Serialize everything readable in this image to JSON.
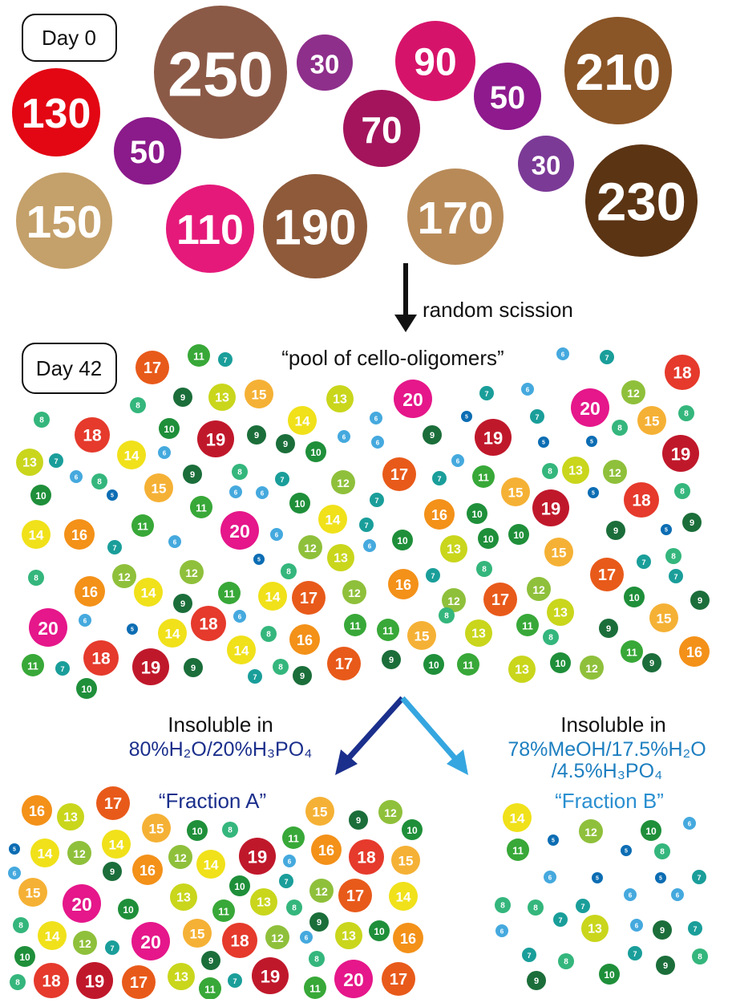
{
  "day0": {
    "label": "Day 0",
    "circles": [
      "130",
      "250",
      "30",
      "50",
      "90",
      "70",
      "50",
      "30",
      "210",
      "230",
      "150",
      "110",
      "190",
      "170"
    ]
  },
  "arrow_label": "random scission",
  "day42": {
    "label": "Day 42",
    "title": "“pool of cello-oligomers”",
    "circles": [
      "17",
      "11",
      "7",
      "6",
      "7",
      "18",
      "8",
      "9",
      "13",
      "15",
      "13",
      "20",
      "7",
      "6",
      "20",
      "12",
      "8",
      "18",
      "10",
      "19",
      "9",
      "9",
      "14",
      "10",
      "6",
      "6",
      "6",
      "9",
      "5",
      "19",
      "7",
      "5",
      "5",
      "8",
      "15",
      "8",
      "13",
      "7",
      "6",
      "8",
      "5",
      "14",
      "6",
      "9",
      "15",
      "8",
      "7",
      "6",
      "11",
      "6",
      "10",
      "12",
      "7",
      "17",
      "7",
      "6",
      "11",
      "8",
      "13",
      "12",
      "15",
      "5",
      "18",
      "19",
      "8",
      "10",
      "11",
      "6",
      "20",
      "6",
      "12",
      "14",
      "7",
      "6",
      "13",
      "5",
      "10",
      "16",
      "10",
      "10",
      "10",
      "13",
      "19",
      "9",
      "5",
      "9",
      "14",
      "16",
      "7",
      "15",
      "7",
      "8",
      "7",
      "8",
      "12",
      "12",
      "8",
      "8",
      "7",
      "17",
      "16",
      "14",
      "9",
      "11",
      "14",
      "17",
      "12",
      "16",
      "12",
      "17",
      "12",
      "10",
      "9",
      "20",
      "6",
      "5",
      "14",
      "18",
      "6",
      "8",
      "16",
      "11",
      "11",
      "15",
      "8",
      "13",
      "11",
      "13",
      "8",
      "9",
      "15",
      "11",
      "7",
      "18",
      "19",
      "9",
      "14",
      "7",
      "8",
      "9",
      "17",
      "9",
      "10",
      "11",
      "13",
      "10",
      "12",
      "11",
      "9",
      "16",
      "10"
    ]
  },
  "fraction_a": {
    "condition": [
      "Insoluble in",
      "80%H₂O/20%H₃PO₄"
    ],
    "title": "“Fraction A”",
    "circles": [
      "16",
      "13",
      "17",
      "15",
      "10",
      "8",
      "15",
      "9",
      "12",
      "10",
      "5",
      "14",
      "12",
      "14",
      "16",
      "12",
      "14",
      "19",
      "6",
      "11",
      "16",
      "18",
      "15",
      "6",
      "15",
      "9",
      "10",
      "7",
      "12",
      "17",
      "14",
      "20",
      "10",
      "13",
      "11",
      "13",
      "8",
      "9",
      "8",
      "14",
      "12",
      "7",
      "20",
      "15",
      "18",
      "12",
      "6",
      "13",
      "10",
      "16",
      "10",
      "9",
      "8",
      "8",
      "18",
      "19",
      "17",
      "13",
      "11",
      "7",
      "19",
      "11",
      "20",
      "17"
    ]
  },
  "fraction_b": {
    "condition": [
      "Insoluble in",
      "78%MeOH/17.5%H₂O",
      "/4.5%H₃PO₄"
    ],
    "title": "“Fraction B”",
    "circles": [
      "14",
      "12",
      "10",
      "6",
      "11",
      "5",
      "5",
      "8",
      "6",
      "5",
      "5",
      "7",
      "6",
      "6",
      "8",
      "8",
      "7",
      "7",
      "13",
      "6",
      "9",
      "7",
      "6",
      "7",
      "8",
      "10",
      "7",
      "9",
      "8",
      "9"
    ]
  }
}
